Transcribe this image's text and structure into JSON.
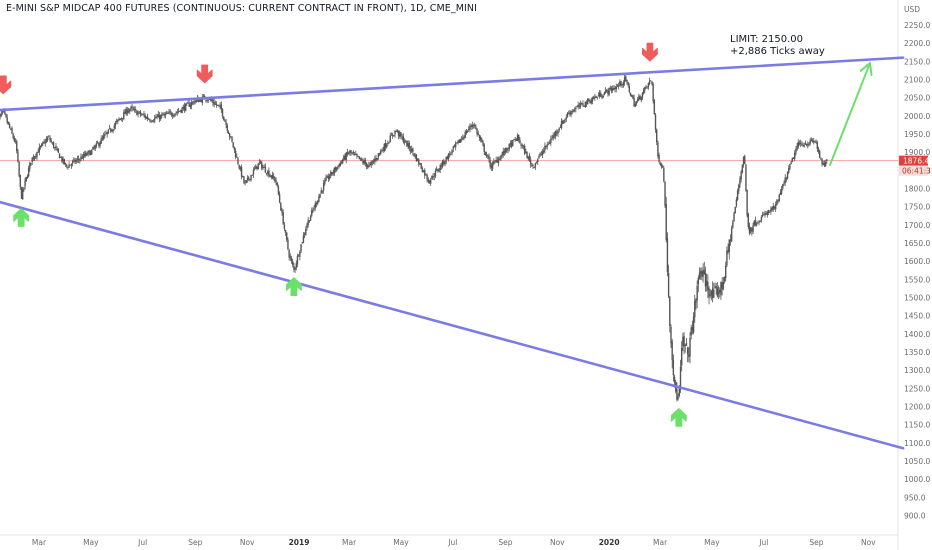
{
  "chart_data": {
    "type": "candlestick",
    "title": "E-MINI S&P MIDCAP 400 FUTURES (CONTINUOUS: CURRENT CONTRACT IN FRONT), 1D, CME_MINI",
    "currency": "USD",
    "yaxis_ticks": [
      "2250.0",
      "2200.0",
      "2150.0",
      "2100.0",
      "2050.0",
      "2000.0",
      "1950.0",
      "1900.0",
      "1850.0",
      "1800.0",
      "1750.0",
      "1700.0",
      "1650.0",
      "1600.0",
      "1550.0",
      "1500.0",
      "1450.0",
      "1400.0",
      "1350.0",
      "1300.0",
      "1250.0",
      "1200.0",
      "1150.0",
      "1100.0",
      "1050.0",
      "1000.0",
      "950.0",
      "900.0"
    ],
    "xaxis_ticks": [
      "Mar",
      "May",
      "Jul",
      "Sep",
      "Nov",
      "2019",
      "Mar",
      "May",
      "Jul",
      "Sep",
      "Nov",
      "2020",
      "Mar",
      "May",
      "Jul",
      "Sep",
      "Nov"
    ],
    "ylim": [
      870,
      2290
    ],
    "last_price": "1876.4",
    "countdown": "06:41:31",
    "price_anchors": [
      {
        "date": "2018-01-10",
        "close": 1985
      },
      {
        "date": "2018-01-18",
        "close": 2010
      },
      {
        "date": "2018-02-02",
        "close": 1920
      },
      {
        "date": "2018-02-08",
        "close": 1775
      },
      {
        "date": "2018-02-20",
        "close": 1880
      },
      {
        "date": "2018-03-12",
        "close": 1940
      },
      {
        "date": "2018-04-02",
        "close": 1860
      },
      {
        "date": "2018-05-01",
        "close": 1900
      },
      {
        "date": "2018-06-15",
        "close": 2020
      },
      {
        "date": "2018-07-10",
        "close": 1990
      },
      {
        "date": "2018-08-10",
        "close": 2010
      },
      {
        "date": "2018-08-31",
        "close": 2040
      },
      {
        "date": "2018-09-15",
        "close": 2050
      },
      {
        "date": "2018-10-01",
        "close": 2020
      },
      {
        "date": "2018-10-15",
        "close": 1920
      },
      {
        "date": "2018-10-29",
        "close": 1810
      },
      {
        "date": "2018-11-15",
        "close": 1870
      },
      {
        "date": "2018-12-05",
        "close": 1820
      },
      {
        "date": "2018-12-20",
        "close": 1620
      },
      {
        "date": "2018-12-26",
        "close": 1575
      },
      {
        "date": "2019-01-10",
        "close": 1700
      },
      {
        "date": "2019-02-01",
        "close": 1820
      },
      {
        "date": "2019-03-01",
        "close": 1900
      },
      {
        "date": "2019-03-25",
        "close": 1860
      },
      {
        "date": "2019-04-25",
        "close": 1960
      },
      {
        "date": "2019-05-15",
        "close": 1900
      },
      {
        "date": "2019-06-03",
        "close": 1820
      },
      {
        "date": "2019-07-25",
        "close": 1980
      },
      {
        "date": "2019-08-15",
        "close": 1860
      },
      {
        "date": "2019-09-15",
        "close": 1940
      },
      {
        "date": "2019-10-03",
        "close": 1860
      },
      {
        "date": "2019-11-15",
        "close": 2010
      },
      {
        "date": "2019-12-15",
        "close": 2050
      },
      {
        "date": "2020-01-10",
        "close": 2080
      },
      {
        "date": "2020-01-20",
        "close": 2100
      },
      {
        "date": "2020-01-31",
        "close": 2030
      },
      {
        "date": "2020-02-20",
        "close": 2100
      },
      {
        "date": "2020-02-27",
        "close": 1890
      },
      {
        "date": "2020-03-05",
        "close": 1850
      },
      {
        "date": "2020-03-12",
        "close": 1450
      },
      {
        "date": "2020-03-18",
        "close": 1250
      },
      {
        "date": "2020-03-23",
        "close": 1215
      },
      {
        "date": "2020-03-27",
        "close": 1380
      },
      {
        "date": "2020-04-03",
        "close": 1340
      },
      {
        "date": "2020-04-17",
        "close": 1580
      },
      {
        "date": "2020-05-01",
        "close": 1500
      },
      {
        "date": "2020-05-13",
        "close": 1530
      },
      {
        "date": "2020-06-08",
        "close": 1900
      },
      {
        "date": "2020-06-12",
        "close": 1690
      },
      {
        "date": "2020-07-15",
        "close": 1750
      },
      {
        "date": "2020-08-10",
        "close": 1920
      },
      {
        "date": "2020-08-31",
        "close": 1930
      },
      {
        "date": "2020-09-08",
        "close": 1860
      },
      {
        "date": "2020-09-14",
        "close": 1876
      }
    ],
    "trendlines": [
      {
        "name": "upper-resistance",
        "from": {
          "date": "2018-01-10",
          "price": 2015
        },
        "to": {
          "date": "2020-12-12",
          "price": 2160
        },
        "color": "#7b7be6"
      },
      {
        "name": "lower-support",
        "from": {
          "date": "2018-01-10",
          "price": 1765
        },
        "to": {
          "date": "2020-12-12",
          "price": 1085
        },
        "color": "#7b7be6"
      }
    ],
    "projection": {
      "from": {
        "date": "2020-09-17",
        "price": 1865
      },
      "to": {
        "date": "2020-11-03",
        "price": 2145
      },
      "color": "#6be06b"
    },
    "red_markers": [
      {
        "date": "2018-01-18",
        "price": 2085
      },
      {
        "date": "2018-09-12",
        "price": 2115
      },
      {
        "date": "2020-02-18",
        "price": 2175
      }
    ],
    "green_markers": [
      {
        "date": "2018-02-08",
        "price": 1720
      },
      {
        "date": "2018-12-26",
        "price": 1530
      },
      {
        "date": "2020-03-23",
        "price": 1170
      }
    ],
    "annotation": {
      "line1": "LIMIT:  2150.00",
      "line2": "+2,886 Ticks away"
    },
    "colors": {
      "candle": "#555555",
      "trendline": "#7b7be6",
      "up_arrow": "#6be06b",
      "down_arrow": "#f05b5b",
      "last_price_bg": "#e0413a",
      "countdown_bg": "#f2dcdc",
      "price_line": "#f4a3a3"
    }
  }
}
